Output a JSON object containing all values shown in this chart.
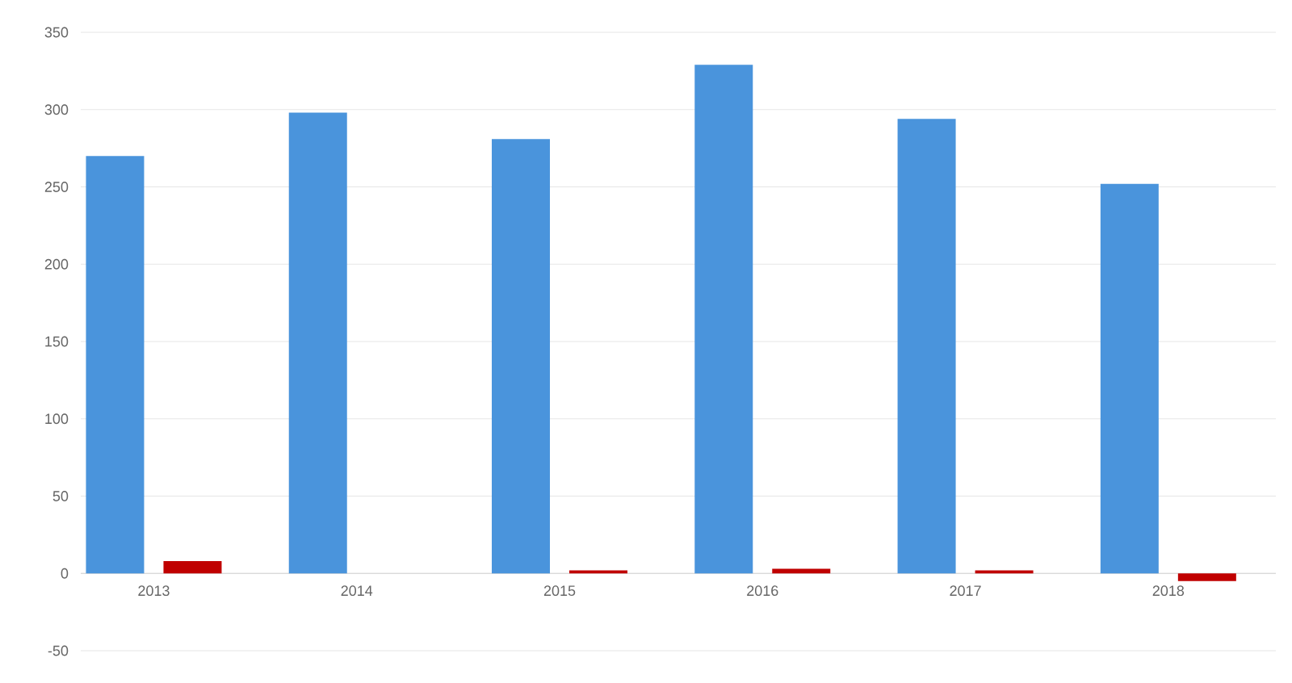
{
  "chart_data": {
    "type": "bar",
    "categories": [
      "2013",
      "2014",
      "2015",
      "2016",
      "2017",
      "2018"
    ],
    "series": [
      {
        "color": "#4a94dc",
        "values": [
          270,
          298,
          281,
          329,
          294,
          252
        ]
      },
      {
        "color": "#c00000",
        "values": [
          8,
          0,
          2,
          3,
          2,
          -5
        ]
      }
    ],
    "ylim": [
      -50,
      350
    ],
    "yticks": [
      -50,
      0,
      50,
      100,
      150,
      200,
      250,
      300,
      350
    ],
    "grid": "y"
  }
}
